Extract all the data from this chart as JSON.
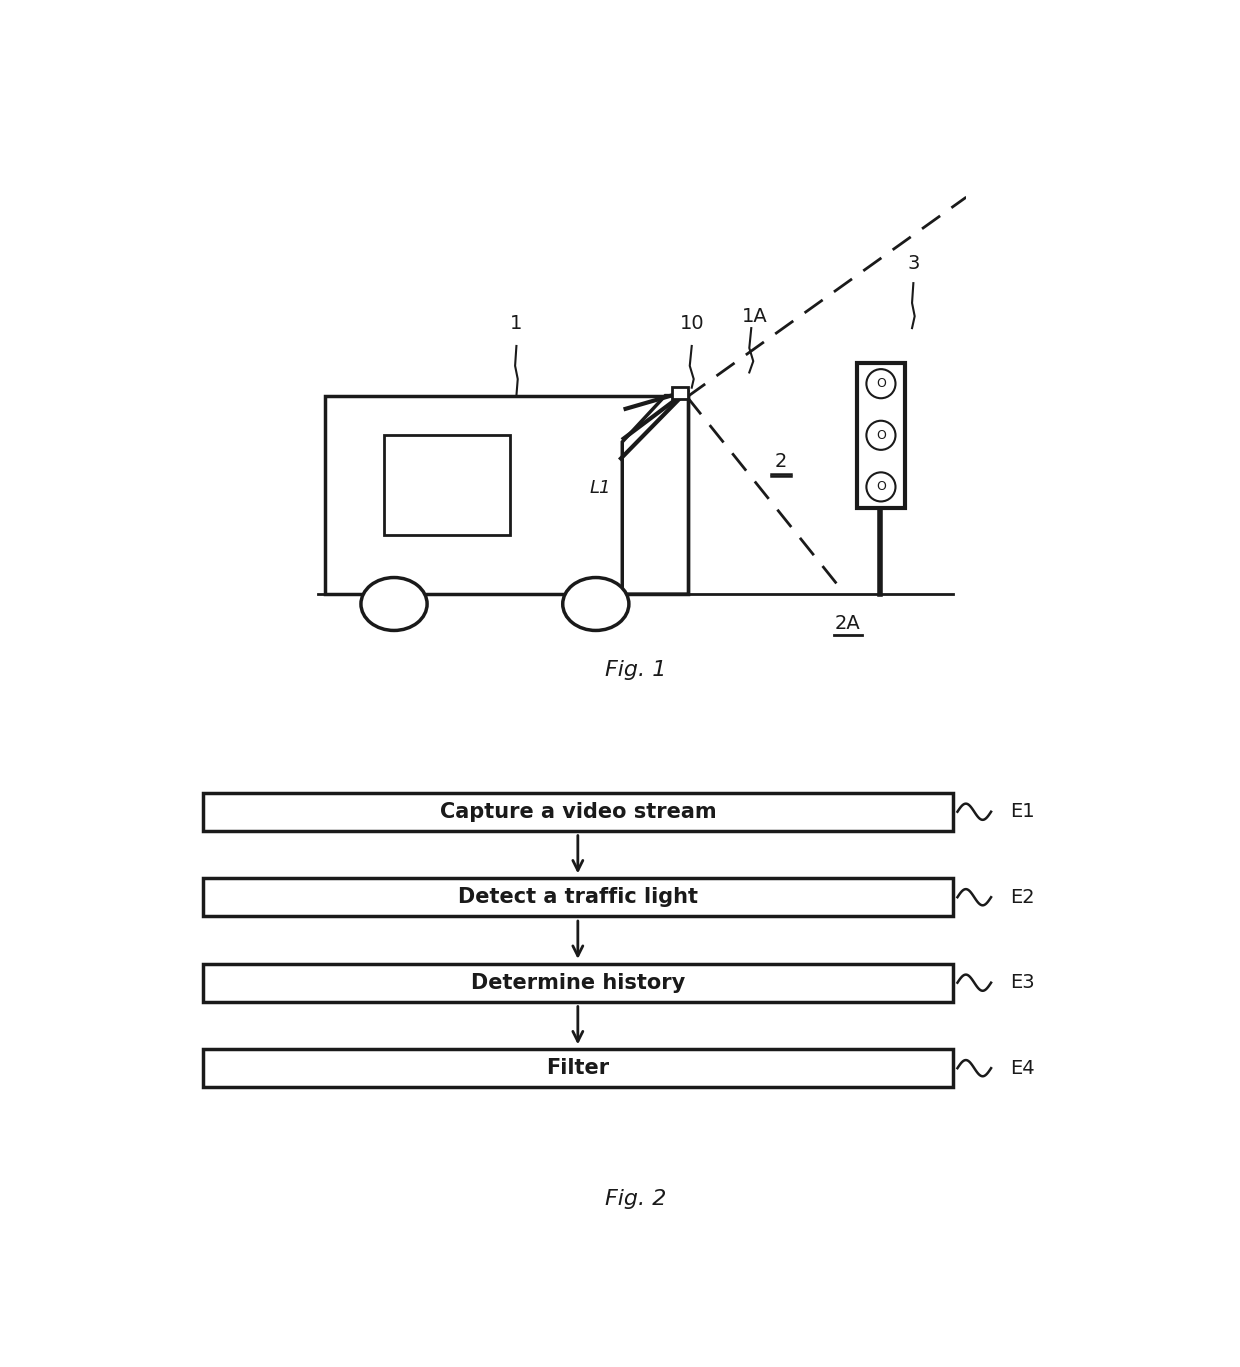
{
  "bg_color": "#ffffff",
  "black": "#1a1a1a",
  "lw": 2.0,
  "fig1_title": "Fig. 1",
  "fig2_title": "Fig. 2",
  "fig2_steps": [
    {
      "label": "Capture a video stream",
      "tag": "E1"
    },
    {
      "label": "Detect a traffic light",
      "tag": "E2"
    },
    {
      "label": "Determine history",
      "tag": "E3"
    },
    {
      "label": "Filter",
      "tag": "E4"
    }
  ]
}
